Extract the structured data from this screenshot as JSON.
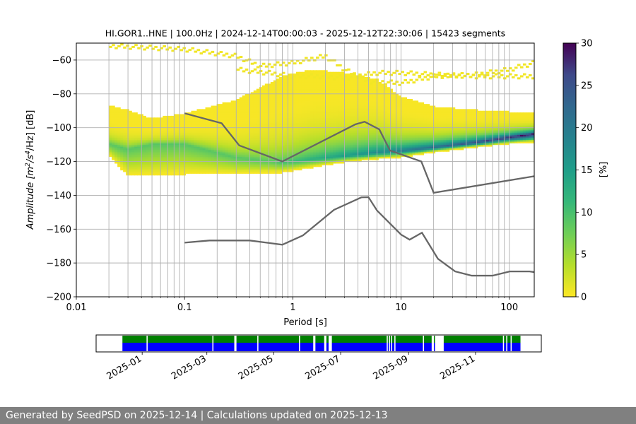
{
  "chart_data": [
    {
      "type": "heatmap",
      "title": "HI.GOR1..HNE | 100.0Hz | 2024-12-14T00:00:03 - 2025-12-12T22:30:06 | 15423 segments",
      "xlabel": "Period [s]",
      "ylabel_parts": [
        "Amplitude [m",
        "2",
        "/s",
        "4",
        "/Hz] [dB]"
      ],
      "x_scale": "log",
      "xlim": [
        0.01,
        170
      ],
      "ylim": [
        -200,
        -50
      ],
      "x_ticks": [
        {
          "v": 0.01,
          "label": "0.01"
        },
        {
          "v": 0.1,
          "label": "0.1"
        },
        {
          "v": 1,
          "label": "1"
        },
        {
          "v": 10,
          "label": "10"
        },
        {
          "v": 100,
          "label": "100"
        }
      ],
      "y_ticks": [
        {
          "v": -60,
          "label": "−60"
        },
        {
          "v": -80,
          "label": "−80"
        },
        {
          "v": -100,
          "label": "−100"
        },
        {
          "v": -120,
          "label": "−120"
        },
        {
          "v": -140,
          "label": "−140"
        },
        {
          "v": -160,
          "label": "−160"
        },
        {
          "v": -180,
          "label": "−180"
        },
        {
          "v": -200,
          "label": "−200"
        }
      ],
      "grid": true,
      "colorbar": {
        "label": "[%]",
        "min": 0,
        "max": 30,
        "ticks": [
          {
            "v": 0,
            "label": "0"
          },
          {
            "v": 5,
            "label": "5"
          },
          {
            "v": 10,
            "label": "10"
          },
          {
            "v": 15,
            "label": "15"
          },
          {
            "v": 20,
            "label": "20"
          },
          {
            "v": 25,
            "label": "25"
          },
          {
            "v": 30,
            "label": "30"
          }
        ],
        "colormap": "viridis_r"
      },
      "period_range": [
        0.02,
        170
      ],
      "density_bands": [
        {
          "p": [
            0.02,
            0.03,
            0.05,
            0.1,
            0.3,
            0.8,
            1.5,
            3,
            6,
            10,
            20,
            50,
            100,
            170
          ],
          "mode": [
            -110,
            -113,
            -110,
            -110,
            -118,
            -121,
            -119,
            -117,
            -115,
            -114,
            -112,
            -109,
            -106,
            -104
          ],
          "lo": [
            -116,
            -128,
            -128,
            -127,
            -127,
            -126,
            -123,
            -120,
            -118,
            -117,
            -114,
            -111,
            -109,
            -108
          ],
          "hi": [
            -87,
            -90,
            -95,
            -92,
            -84,
            -70,
            -66,
            -68,
            -72,
            -82,
            -88,
            -90,
            -91,
            -92
          ]
        },
        {
          "p": [
            0.02,
            0.1,
            0.3,
            0.5,
            1,
            2,
            3,
            5,
            10,
            20,
            50,
            100,
            170
          ],
          "val": [
            -52,
            -54,
            -58,
            -64,
            -62,
            -58,
            -66,
            -73,
            -74,
            -70,
            -69,
            -66,
            -62
          ]
        },
        {
          "p": [
            0.3,
            0.6,
            1,
            2,
            3,
            6,
            10,
            20,
            50,
            100,
            170
          ],
          "val": [
            -66,
            -68,
            -70,
            -70,
            -71,
            -68,
            -68,
            -69,
            -70,
            -70,
            -70
          ]
        }
      ],
      "models": [
        {
          "name": "",
          "x": [
            0.1,
            0.22,
            0.32,
            0.8,
            3.8,
            4.6,
            6.3,
            7.9,
            15.4,
            20,
            170
          ],
          "y": [
            -91.5,
            -97.4,
            -110.5,
            -120,
            -98,
            -96.5,
            -101,
            -113.5,
            -120,
            -138.5,
            -128.7
          ]
        },
        {
          "name": "",
          "x": [
            0.1,
            0.17,
            0.4,
            0.8,
            1.24,
            2.4,
            4.3,
            5,
            6,
            10,
            12,
            15.6,
            21.9,
            31.6,
            45,
            70,
            101,
            154,
            170
          ],
          "y": [
            -168,
            -166.7,
            -166.7,
            -169.2,
            -163.7,
            -148.6,
            -141.2,
            -141.1,
            -149,
            -163.2,
            -166.2,
            -162.1,
            -177.5,
            -185,
            -187.5,
            -187.5,
            -185,
            -185,
            -185.4
          ]
        }
      ]
    },
    {
      "type": "timeline",
      "x_ticks": [
        "2025-01",
        "2025-03",
        "2025-05",
        "2025-07",
        "2025-09",
        "2025-11"
      ],
      "x_tick_dates": [
        "2025-01-01",
        "2025-03-01",
        "2025-05-01",
        "2025-07-01",
        "2025-09-01",
        "2025-11-01"
      ],
      "xlim": [
        "2024-11-20",
        "2025-12-31"
      ],
      "data_range": [
        "2024-12-14",
        "2025-12-12"
      ],
      "gaps": [
        [
          "2025-01-05",
          "2025-01-06"
        ],
        [
          "2025-03-06",
          "2025-03-07"
        ],
        [
          "2025-03-26",
          "2025-03-28"
        ],
        [
          "2025-04-16",
          "2025-04-17"
        ],
        [
          "2025-05-24",
          "2025-05-25"
        ],
        [
          "2025-06-06",
          "2025-06-08"
        ],
        [
          "2025-06-16",
          "2025-06-18"
        ],
        [
          "2025-06-20",
          "2025-06-23"
        ],
        [
          "2025-08-12",
          "2025-08-13"
        ],
        [
          "2025-08-14",
          "2025-08-15"
        ],
        [
          "2025-08-16",
          "2025-08-17"
        ],
        [
          "2025-08-19",
          "2025-08-20"
        ],
        [
          "2025-09-14",
          "2025-09-15"
        ],
        [
          "2025-09-22",
          "2025-09-24"
        ],
        [
          "2025-09-25",
          "2025-10-03"
        ],
        [
          "2025-11-26",
          "2025-11-27"
        ],
        [
          "2025-11-29",
          "2025-11-30"
        ],
        [
          "2025-12-03",
          "2025-12-04"
        ]
      ],
      "colors": {
        "upper": "#008000",
        "lower": "#0000ff"
      }
    }
  ],
  "footer": "Generated by SeedPSD on 2025-12-14 | Calculations updated on 2025-12-13"
}
